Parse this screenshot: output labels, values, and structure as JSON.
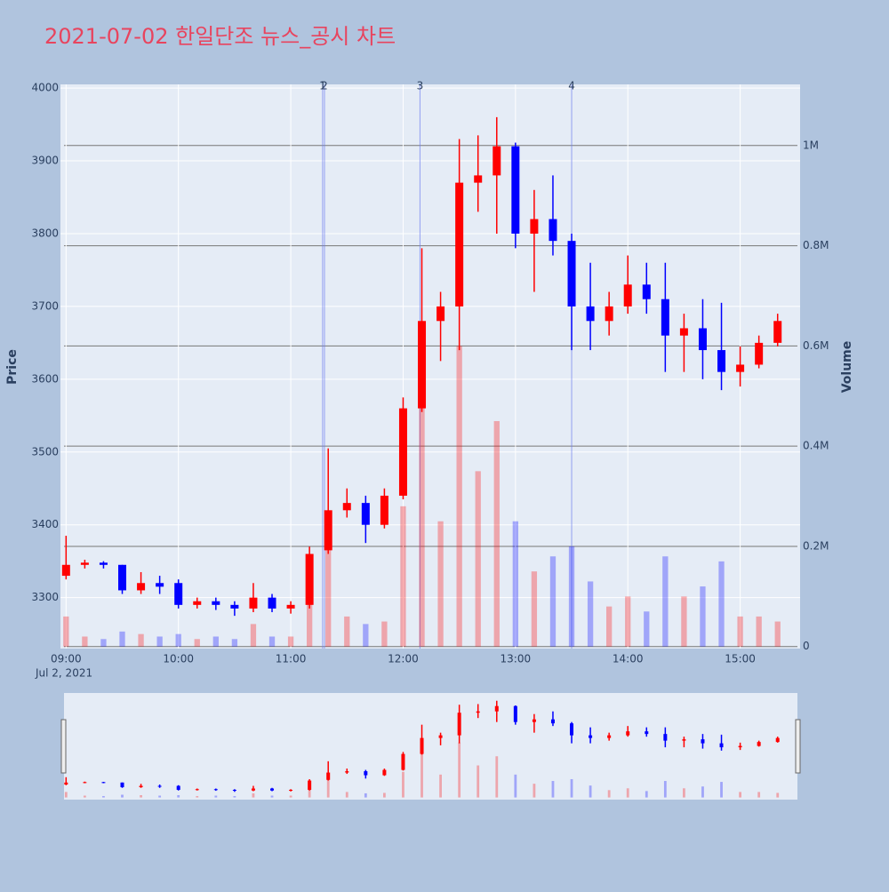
{
  "chart_data": {
    "type": "candlestick",
    "title": "2021-07-02 한일단조 뉴스_공시 차트",
    "ylabel": "Price",
    "y2label": "Volume",
    "x_date_label": "Jul 2, 2021",
    "x": [
      "2021-07-02 09:00",
      "2021-07-02 09:10",
      "2021-07-02 09:20",
      "2021-07-02 09:30",
      "2021-07-02 09:40",
      "2021-07-02 09:50",
      "2021-07-02 10:00",
      "2021-07-02 10:10",
      "2021-07-02 10:20",
      "2021-07-02 10:30",
      "2021-07-02 10:40",
      "2021-07-02 10:50",
      "2021-07-02 11:00",
      "2021-07-02 11:10",
      "2021-07-02 11:20",
      "2021-07-02 11:30",
      "2021-07-02 11:40",
      "2021-07-02 11:50",
      "2021-07-02 12:00",
      "2021-07-02 12:10",
      "2021-07-02 12:20",
      "2021-07-02 12:30",
      "2021-07-02 12:40",
      "2021-07-02 12:50",
      "2021-07-02 13:00",
      "2021-07-02 13:10",
      "2021-07-02 13:20",
      "2021-07-02 13:30",
      "2021-07-02 13:40",
      "2021-07-02 13:50",
      "2021-07-02 14:00",
      "2021-07-02 14:10",
      "2021-07-02 14:20",
      "2021-07-02 14:30",
      "2021-07-02 14:40",
      "2021-07-02 14:50",
      "2021-07-02 15:00",
      "2021-07-02 15:10",
      "2021-07-02 15:20"
    ],
    "open": [
      3330,
      3345,
      3348,
      3345,
      3310,
      3320,
      3320,
      3290,
      3295,
      3290,
      3285,
      3300,
      3285,
      3290,
      3365,
      3420,
      3430,
      3400,
      3440,
      3560,
      3680,
      3700,
      3870,
      3880,
      3920,
      3800,
      3820,
      3790,
      3700,
      3680,
      3700,
      3730,
      3710,
      3660,
      3670,
      3640,
      3610,
      3620,
      3650
    ],
    "high": [
      3385,
      3352,
      3350,
      3345,
      3335,
      3330,
      3325,
      3300,
      3300,
      3295,
      3320,
      3305,
      3295,
      3370,
      3505,
      3450,
      3440,
      3450,
      3575,
      3780,
      3720,
      3930,
      3935,
      3960,
      3925,
      3860,
      3880,
      3800,
      3760,
      3720,
      3770,
      3760,
      3760,
      3690,
      3710,
      3705,
      3645,
      3660,
      3690
    ],
    "low": [
      3325,
      3340,
      3340,
      3305,
      3305,
      3305,
      3285,
      3285,
      3283,
      3275,
      3280,
      3280,
      3278,
      3285,
      3360,
      3410,
      3375,
      3395,
      3435,
      3555,
      3625,
      3640,
      3830,
      3800,
      3780,
      3720,
      3770,
      3640,
      3640,
      3660,
      3690,
      3690,
      3610,
      3610,
      3600,
      3585,
      3590,
      3615,
      3645
    ],
    "close": [
      3345,
      3348,
      3345,
      3310,
      3320,
      3315,
      3290,
      3295,
      3290,
      3285,
      3300,
      3285,
      3290,
      3360,
      3420,
      3430,
      3400,
      3440,
      3560,
      3680,
      3700,
      3870,
      3880,
      3920,
      3800,
      3820,
      3790,
      3700,
      3680,
      3700,
      3730,
      3710,
      3660,
      3670,
      3640,
      3610,
      3620,
      3650,
      3680
    ],
    "volume": [
      60000,
      20000,
      15000,
      30000,
      25000,
      20000,
      25000,
      15000,
      20000,
      15000,
      45000,
      20000,
      20000,
      90000,
      250000,
      60000,
      45000,
      50000,
      280000,
      500000,
      250000,
      600000,
      350000,
      450000,
      250000,
      150000,
      180000,
      200000,
      130000,
      80000,
      100000,
      70000,
      180000,
      100000,
      120000,
      170000,
      60000,
      60000,
      50000
    ],
    "increasing_color": "#ff0000",
    "decreasing_color": "#0000ff",
    "xlim": [
      "2021-07-02 08:57",
      "2021-07-02 15:32"
    ],
    "xticks": [
      {
        "value": "2021-07-02 09:00",
        "label": "09:00"
      },
      {
        "value": "2021-07-02 10:00",
        "label": "10:00"
      },
      {
        "value": "2021-07-02 11:00",
        "label": "11:00"
      },
      {
        "value": "2021-07-02 12:00",
        "label": "12:00"
      },
      {
        "value": "2021-07-02 13:00",
        "label": "13:00"
      },
      {
        "value": "2021-07-02 14:00",
        "label": "14:00"
      },
      {
        "value": "2021-07-02 15:00",
        "label": "15:00"
      }
    ],
    "ylim": [
      3230,
      4005
    ],
    "yticks": [
      3300,
      3400,
      3500,
      3600,
      3700,
      3800,
      3900,
      4000
    ],
    "y2lim": [
      -4000,
      1122000
    ],
    "y2ticks": [
      0,
      {
        "value": 200000,
        "label": "0.2M"
      },
      {
        "value": 400000,
        "label": "0.4M"
      },
      {
        "value": 600000,
        "label": "0.6M"
      },
      {
        "value": 800000,
        "label": "0.8M"
      },
      {
        "value": 1000000,
        "label": "1M"
      }
    ],
    "events": [
      {
        "x": "2021-07-02 11:17",
        "label": "1"
      },
      {
        "x": "2021-07-02 11:18",
        "label": "2"
      },
      {
        "x": "2021-07-02 12:09",
        "label": "3"
      },
      {
        "x": "2021-07-02 13:30",
        "label": "4"
      }
    ],
    "grid": true
  }
}
